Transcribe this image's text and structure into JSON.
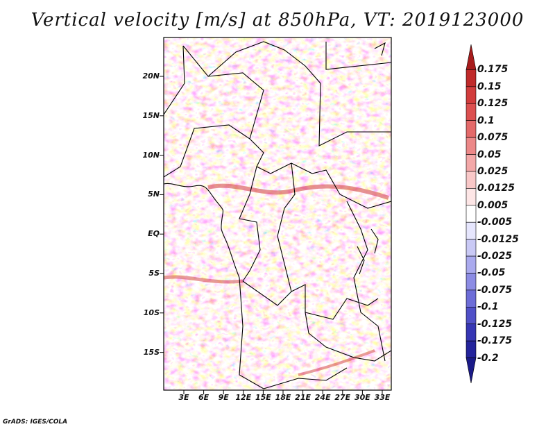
{
  "title": "Vertical velocity [m/s] at 850hPa, VT: 2019123000",
  "credit": "GrADS: IGES/COLA",
  "lat_labels": [
    "20N",
    "15N",
    "10N",
    "5N",
    "EQ",
    "5S",
    "10S",
    "15S"
  ],
  "lon_labels": [
    "3E",
    "6E",
    "9E",
    "12E",
    "15E",
    "18E",
    "21E",
    "24E",
    "27E",
    "30E",
    "33E"
  ],
  "colorbar": {
    "labels": [
      "0.175",
      "0.15",
      "0.125",
      "0.1",
      "0.075",
      "0.05",
      "0.025",
      "0.0125",
      "0.005",
      "-0.005",
      "-0.0125",
      "-0.025",
      "-0.05",
      "-0.075",
      "-0.1",
      "-0.125",
      "-0.175",
      "-0.2"
    ],
    "colors": [
      "#a81c1c",
      "#c02a2a",
      "#d23c3c",
      "#dc5050",
      "#e46a6a",
      "#ec8888",
      "#f3a8a8",
      "#f9c8c8",
      "#fde6e6",
      "#ffffff",
      "#e6e6fd",
      "#c9c9f5",
      "#aaaaee",
      "#8c8ce4",
      "#6d6dd8",
      "#5050c8",
      "#3636b4",
      "#24249c",
      "#1a1a88"
    ]
  },
  "colors": {
    "positive": "#d9434a",
    "negative": "#4a4ad0",
    "frame": "#000000"
  }
}
